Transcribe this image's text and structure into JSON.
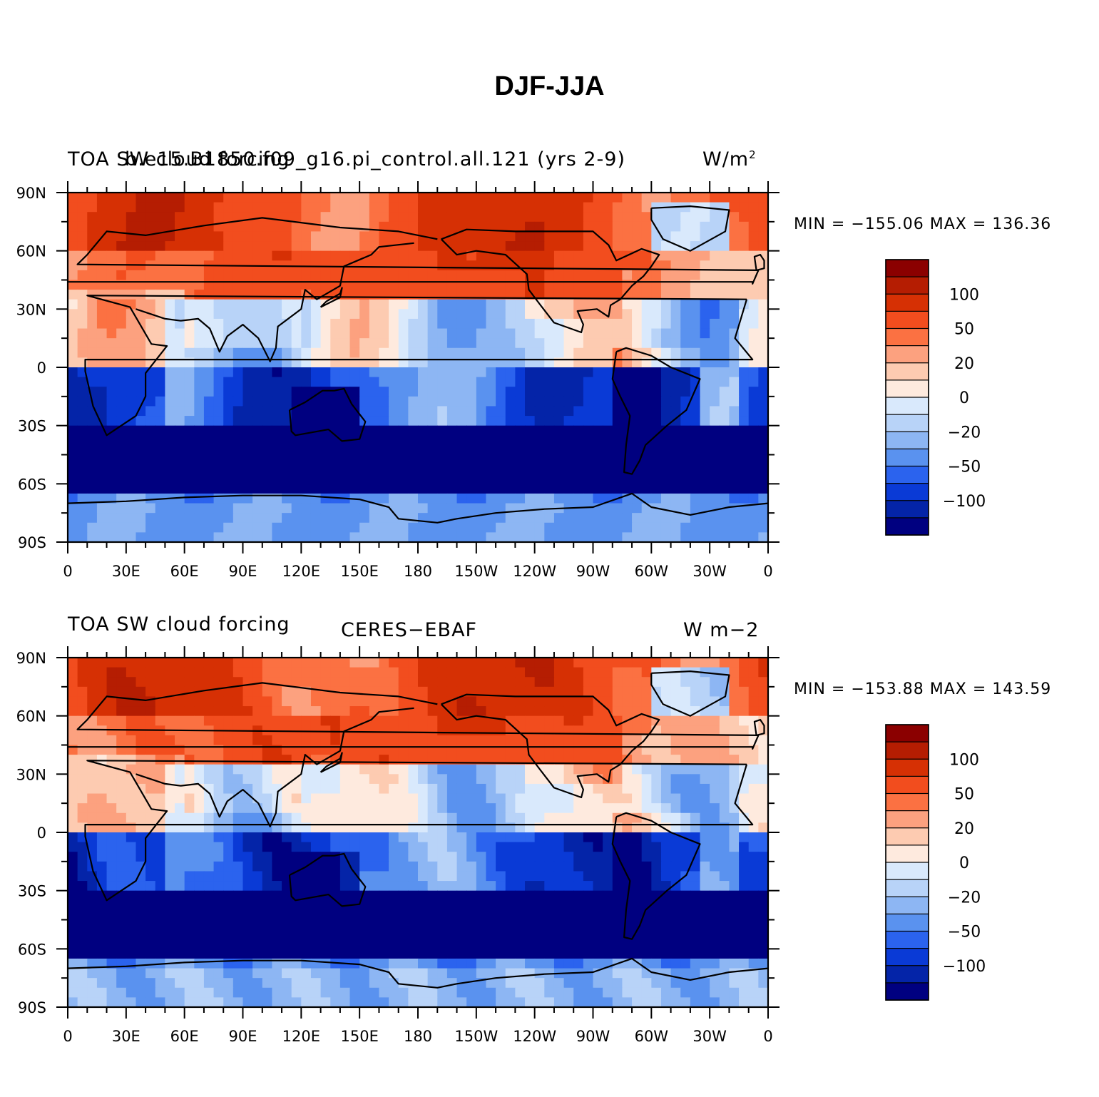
{
  "page_title": "DJF-JJA",
  "panels": [
    {
      "left_title": "TOA SW cloud forcing",
      "center_title": "b.e15.B1850.f09_g16.pi_control.all.121 (yrs 2-9)",
      "units": "W/m",
      "units_sup": "2",
      "stats": "MIN = −155.06  MAX = 136.36"
    },
    {
      "left_title": "TOA SW cloud forcing",
      "center_title": "CERES−EBAF",
      "units": "W m−2",
      "units_sup": "",
      "stats": "MIN = −153.88  MAX = 143.59"
    }
  ],
  "lat_ticks": [
    "90N",
    "60N",
    "30N",
    "0",
    "30S",
    "60S",
    "90S"
  ],
  "lon_ticks": [
    "0",
    "30E",
    "60E",
    "90E",
    "120E",
    "150E",
    "180",
    "150W",
    "120W",
    "90W",
    "60W",
    "30W",
    "0"
  ],
  "colorbar": {
    "labels": [
      "100",
      "50",
      "20",
      "0",
      "−20",
      "−50",
      "−100"
    ],
    "colors": [
      "#8b0000",
      "#b51d02",
      "#d63004",
      "#f24d1e",
      "#fb7142",
      "#fca17f",
      "#fdcbb1",
      "#feeade",
      "#d9e9fc",
      "#b8d3f8",
      "#8db6f3",
      "#5a92ef",
      "#2b63ee",
      "#0a3ad6",
      "#0424a8",
      "#000080"
    ]
  },
  "chart_data": {
    "type": "heatmap",
    "title": "DJF-JJA",
    "maps": [
      {
        "name": "b.e15.B1850.f09_g16.pi_control.all.121 (yrs 2-9)",
        "variable": "TOA SW cloud forcing",
        "units": "W/m2",
        "min": -155.06,
        "max": 136.36
      },
      {
        "name": "CERES-EBAF",
        "variable": "TOA SW cloud forcing",
        "units": "W m-2",
        "min": -153.88,
        "max": 143.59
      }
    ],
    "x_axis": "longitude",
    "y_axis": "latitude",
    "xlim": [
      0,
      360
    ],
    "ylim": [
      -90,
      90
    ],
    "contour_levels": [
      -120,
      -100,
      -80,
      -60,
      -50,
      -40,
      -30,
      -20,
      -10,
      0,
      10,
      20,
      30,
      40,
      50,
      60,
      80,
      100,
      120
    ]
  }
}
